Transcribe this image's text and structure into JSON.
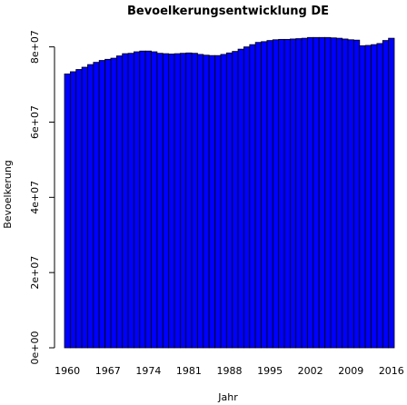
{
  "chart_data": {
    "type": "bar",
    "title": "Bevoelkerungsentwicklung DE",
    "xlabel": "Jahr",
    "ylabel": "Bevoelkerung",
    "categories": [
      1960,
      1961,
      1962,
      1963,
      1964,
      1965,
      1966,
      1967,
      1968,
      1969,
      1970,
      1971,
      1972,
      1973,
      1974,
      1975,
      1976,
      1977,
      1978,
      1979,
      1980,
      1981,
      1982,
      1983,
      1984,
      1985,
      1986,
      1987,
      1988,
      1989,
      1990,
      1991,
      1992,
      1993,
      1994,
      1995,
      1996,
      1997,
      1998,
      1999,
      2000,
      2001,
      2002,
      2003,
      2004,
      2005,
      2006,
      2007,
      2008,
      2009,
      2010,
      2011,
      2012,
      2013,
      2014,
      2015,
      2016
    ],
    "x_tick_labels": [
      "1960",
      "1967",
      "1974",
      "1981",
      "1988",
      "1995",
      "2002",
      "2009",
      "2016"
    ],
    "values": [
      72800000,
      73400000,
      74000000,
      74600000,
      75300000,
      75900000,
      76400000,
      76700000,
      77000000,
      77600000,
      78200000,
      78300000,
      78700000,
      78900000,
      78900000,
      78700000,
      78300000,
      78200000,
      78100000,
      78200000,
      78300000,
      78400000,
      78300000,
      78000000,
      77800000,
      77700000,
      77700000,
      78000000,
      78400000,
      78800000,
      79400000,
      80000000,
      80600000,
      81200000,
      81400000,
      81700000,
      81900000,
      82000000,
      82000000,
      82100000,
      82200000,
      82300000,
      82500000,
      82500000,
      82500000,
      82500000,
      82400000,
      82300000,
      82100000,
      81900000,
      81800000,
      80300000,
      80400000,
      80600000,
      80900000,
      81700000,
      82300000
    ],
    "y_ticks": [
      0,
      20000000,
      40000000,
      60000000,
      80000000
    ],
    "y_tick_labels": [
      "0e+00",
      "2e+07",
      "4e+07",
      "6e+07",
      "8e+07"
    ],
    "ylim": [
      0,
      84500000
    ],
    "bar_color": "#0000ff",
    "bar_edge_color": "#000000",
    "grid": false
  }
}
